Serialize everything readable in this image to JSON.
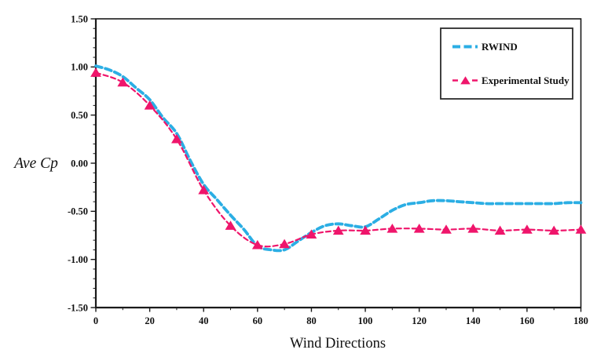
{
  "chart_data": {
    "type": "line",
    "title": "",
    "xlabel": "Wind Directions",
    "ylabel": "Ave Cp",
    "xlim": [
      0,
      180
    ],
    "ylim": [
      -1.5,
      1.5
    ],
    "grid": false,
    "legend_position": "top-right",
    "axis_color": "#1a1a1a",
    "x_tick_labels": [
      "0",
      "20",
      "40",
      "60",
      "80",
      "100",
      "120",
      "140",
      "160",
      "180"
    ],
    "x_minor_tick_step": 10,
    "y_tick_labels": [
      "1.50",
      "1.00",
      "0.50",
      "0.00",
      "-0.50",
      "-1.00",
      "-1.50"
    ],
    "y_minor_tick_step": 0.1,
    "series": [
      {
        "name": "RWIND",
        "color": "#2BAEE4",
        "line_style": "dashed",
        "marker": "none",
        "x": [
          0,
          5,
          10,
          15,
          20,
          25,
          30,
          35,
          40,
          45,
          50,
          55,
          60,
          65,
          70,
          75,
          80,
          85,
          90,
          95,
          100,
          105,
          110,
          115,
          120,
          125,
          130,
          135,
          140,
          145,
          150,
          155,
          160,
          165,
          170,
          175,
          180
        ],
        "y": [
          1.01,
          0.97,
          0.9,
          0.78,
          0.66,
          0.47,
          0.31,
          0.03,
          -0.22,
          -0.38,
          -0.54,
          -0.69,
          -0.86,
          -0.9,
          -0.9,
          -0.81,
          -0.72,
          -0.65,
          -0.63,
          -0.65,
          -0.66,
          -0.58,
          -0.49,
          -0.43,
          -0.41,
          -0.39,
          -0.39,
          -0.4,
          -0.41,
          -0.42,
          -0.42,
          -0.42,
          -0.42,
          -0.42,
          -0.42,
          -0.41,
          -0.41
        ]
      },
      {
        "name": "Experimental Study",
        "color": "#EF156B",
        "line_style": "dashed",
        "marker": "triangle",
        "x": [
          0,
          10,
          20,
          30,
          40,
          50,
          60,
          70,
          80,
          90,
          100,
          110,
          120,
          130,
          140,
          150,
          160,
          170,
          180
        ],
        "y": [
          0.94,
          0.84,
          0.6,
          0.25,
          -0.28,
          -0.65,
          -0.85,
          -0.84,
          -0.74,
          -0.7,
          -0.7,
          -0.68,
          -0.68,
          -0.69,
          -0.68,
          -0.7,
          -0.69,
          -0.7,
          -0.69
        ]
      }
    ]
  }
}
